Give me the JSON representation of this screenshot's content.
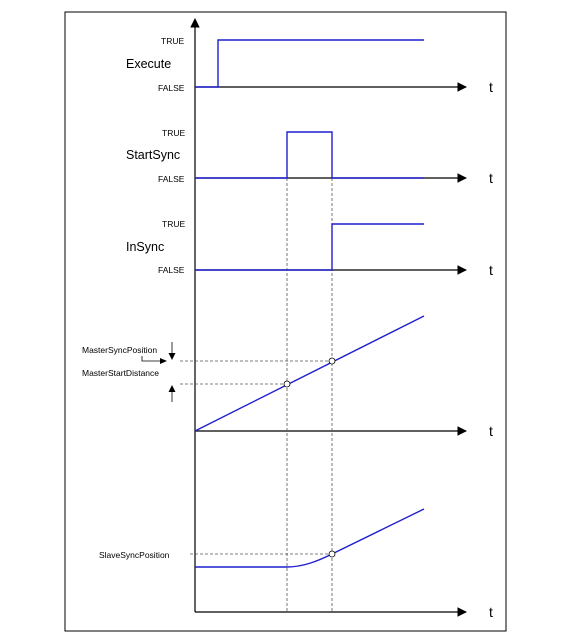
{
  "signals": {
    "execute": {
      "name": "Execute",
      "true_label": "TRUE",
      "false_label": "FALSE"
    },
    "startsync": {
      "name": "StartSync",
      "true_label": "TRUE",
      "false_label": "FALSE"
    },
    "insync": {
      "name": "InSync",
      "true_label": "TRUE",
      "false_label": "FALSE"
    }
  },
  "master": {
    "sync_position_label": "MasterSyncPosition",
    "start_distance_label": "MasterStartDistance"
  },
  "slave": {
    "sync_position_label": "SlaveSyncPosition"
  },
  "axis": {
    "time_label_1": "t",
    "time_label_2": "t",
    "time_label_3": "t",
    "time_label_4": "t",
    "time_label_5": "t"
  },
  "colors": {
    "signal": "#1f1fd0",
    "axis": "#000000",
    "guide": "#555555"
  }
}
